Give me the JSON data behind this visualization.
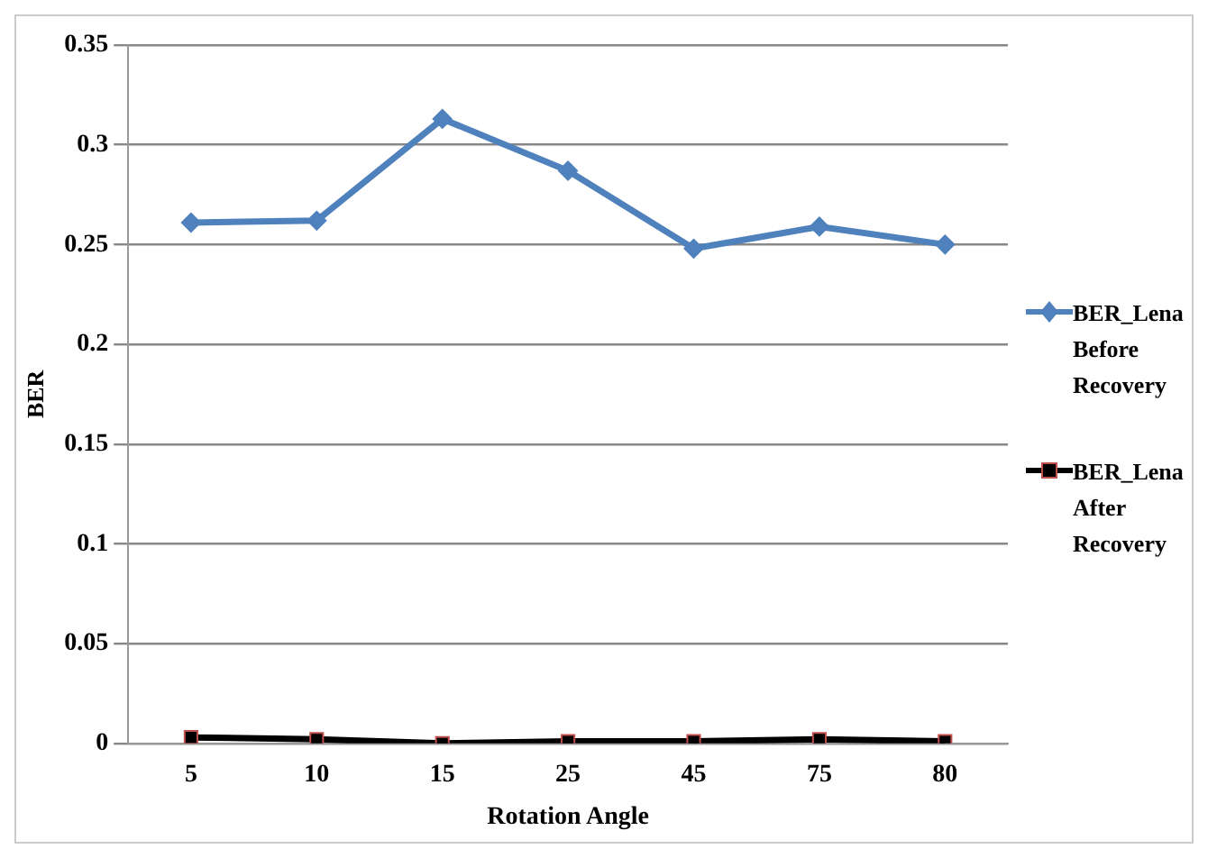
{
  "chart_data": {
    "type": "line",
    "xlabel": "Rotation Angle",
    "ylabel": "BER",
    "categories": [
      "5",
      "10",
      "15",
      "25",
      "45",
      "75",
      "80"
    ],
    "series": [
      {
        "name": "BER_Lena Before Recovery",
        "color": "#4f81bd",
        "marker": "diamond",
        "values": [
          0.261,
          0.262,
          0.313,
          0.287,
          0.248,
          0.259,
          0.25
        ]
      },
      {
        "name": "BER_Lena After Recovery",
        "color": "#000000",
        "marker": "square",
        "values": [
          0.003,
          0.002,
          0,
          0.001,
          0.001,
          0.002,
          0.001
        ]
      }
    ],
    "ylim": [
      0,
      0.35
    ],
    "yticks": [
      0,
      0.05,
      0.1,
      0.15,
      0.2,
      0.25,
      0.3,
      0.35
    ],
    "grid": "y",
    "legend": "right"
  }
}
